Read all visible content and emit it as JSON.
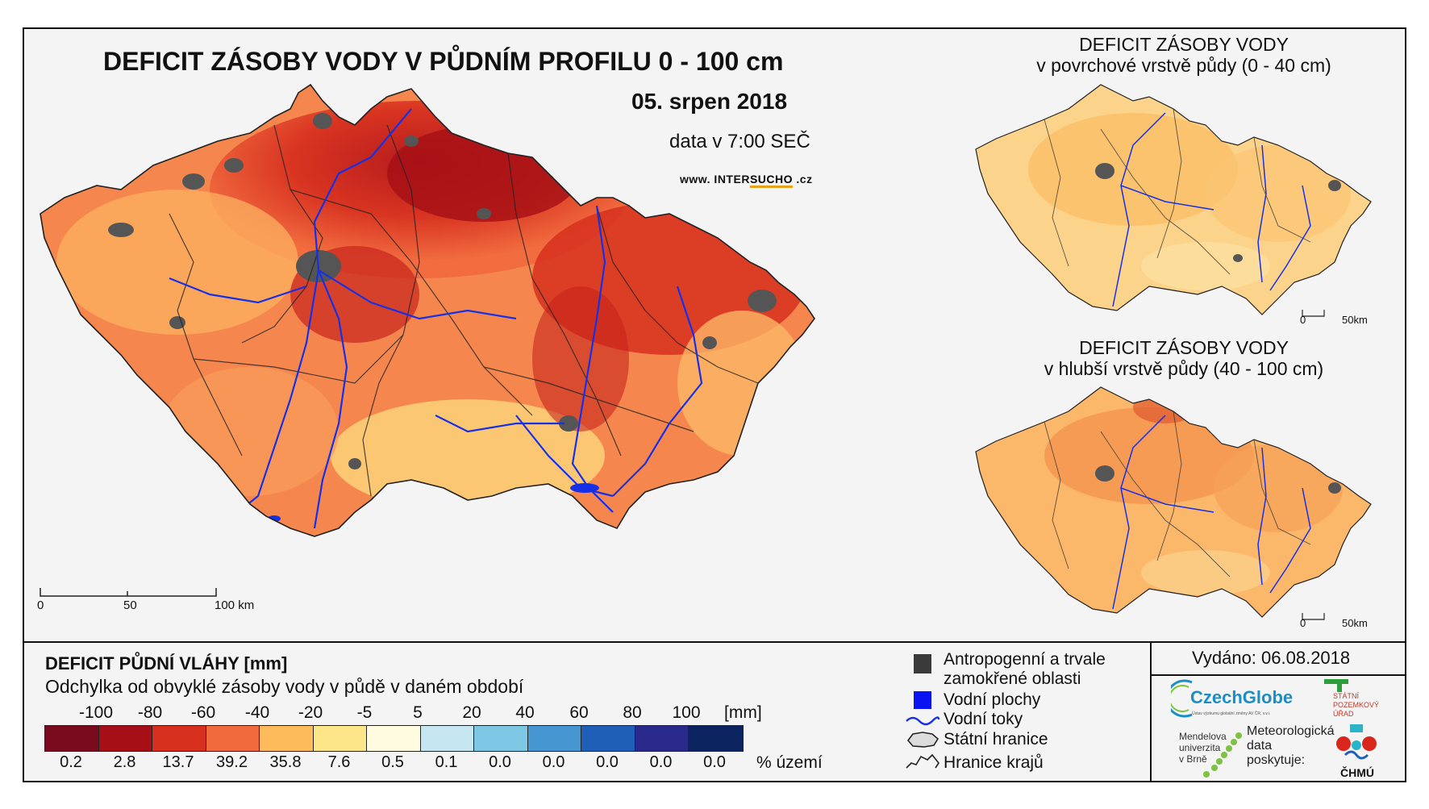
{
  "main": {
    "title": "DEFICIT ZÁSOBY VODY V PŮDNÍM PROFILU 0 - 100 cm",
    "date": "05. srpen 2018",
    "time": "data v 7:00 SEČ",
    "site_prefix": "www. INTER",
    "site_highlight": "SUCHO",
    "site_suffix": " .cz",
    "scale": [
      "0",
      "50",
      "100 km"
    ]
  },
  "inset_top": {
    "title_line1": "DEFICIT ZÁSOBY VODY",
    "title_line2": "v povrchové vrstvě půdy (0 - 40 cm)",
    "scale": [
      "0",
      "50km"
    ]
  },
  "inset_bottom": {
    "title_line1": "DEFICIT ZÁSOBY VODY",
    "title_line2": "v hlubší vrstvě půdy (40 - 100 cm)",
    "scale": [
      "0",
      "50km"
    ]
  },
  "legend": {
    "title": "DEFICIT PŮDNÍ VLÁHY [mm]",
    "subtitle": "Odchylka od obvyklé zásoby vody v půdě v daném období",
    "ticks": [
      "-100",
      "-80",
      "-60",
      "-40",
      "-20",
      "-5",
      "5",
      "20",
      "40",
      "60",
      "80",
      "100"
    ],
    "unit": "[mm]",
    "colors": [
      "#7a0a1e",
      "#a50f15",
      "#d7301f",
      "#f16a3e",
      "#fdbb5c",
      "#fde68a",
      "#fffbe0",
      "#c6e7f2",
      "#7dc6e4",
      "#4596d1",
      "#1f5fb8",
      "#2a2a8c",
      "#0b2460"
    ],
    "percentages": [
      "0.2",
      "2.8",
      "13.7",
      "39.2",
      "35.8",
      "7.6",
      "0.5",
      "0.1",
      "0.0",
      "0.0",
      "0.0",
      "0.0",
      "0.0"
    ],
    "pct_unit": "% území"
  },
  "symbols": {
    "anthro_line1": "Antropogenní a trvale",
    "anthro_line2": "zamokřené oblasti",
    "water_bodies": "Vodní plochy",
    "rivers": "Vodní toky",
    "state_border": "Státní hranice",
    "region_border": "Hranice krajů"
  },
  "footer": {
    "issued": "Vydáno: 06.08.2018",
    "czechglobe": "CzechGlobe",
    "czechglobe_sub": "Ústav výzkumu globální změny AV ČR, v.v.i.",
    "mendelu_line1": "Mendelova",
    "mendelu_line2": "univerzita",
    "mendelu_line3": "v Brně",
    "spu_line1": "STÁTNÍ",
    "spu_line2": "POZEMKOVÝ",
    "spu_line3": "ÚŘAD",
    "meteo_line1": "Meteorologická",
    "meteo_line2": "data",
    "meteo_line3": "poskytuje:",
    "chmu": "ČHMÚ"
  }
}
